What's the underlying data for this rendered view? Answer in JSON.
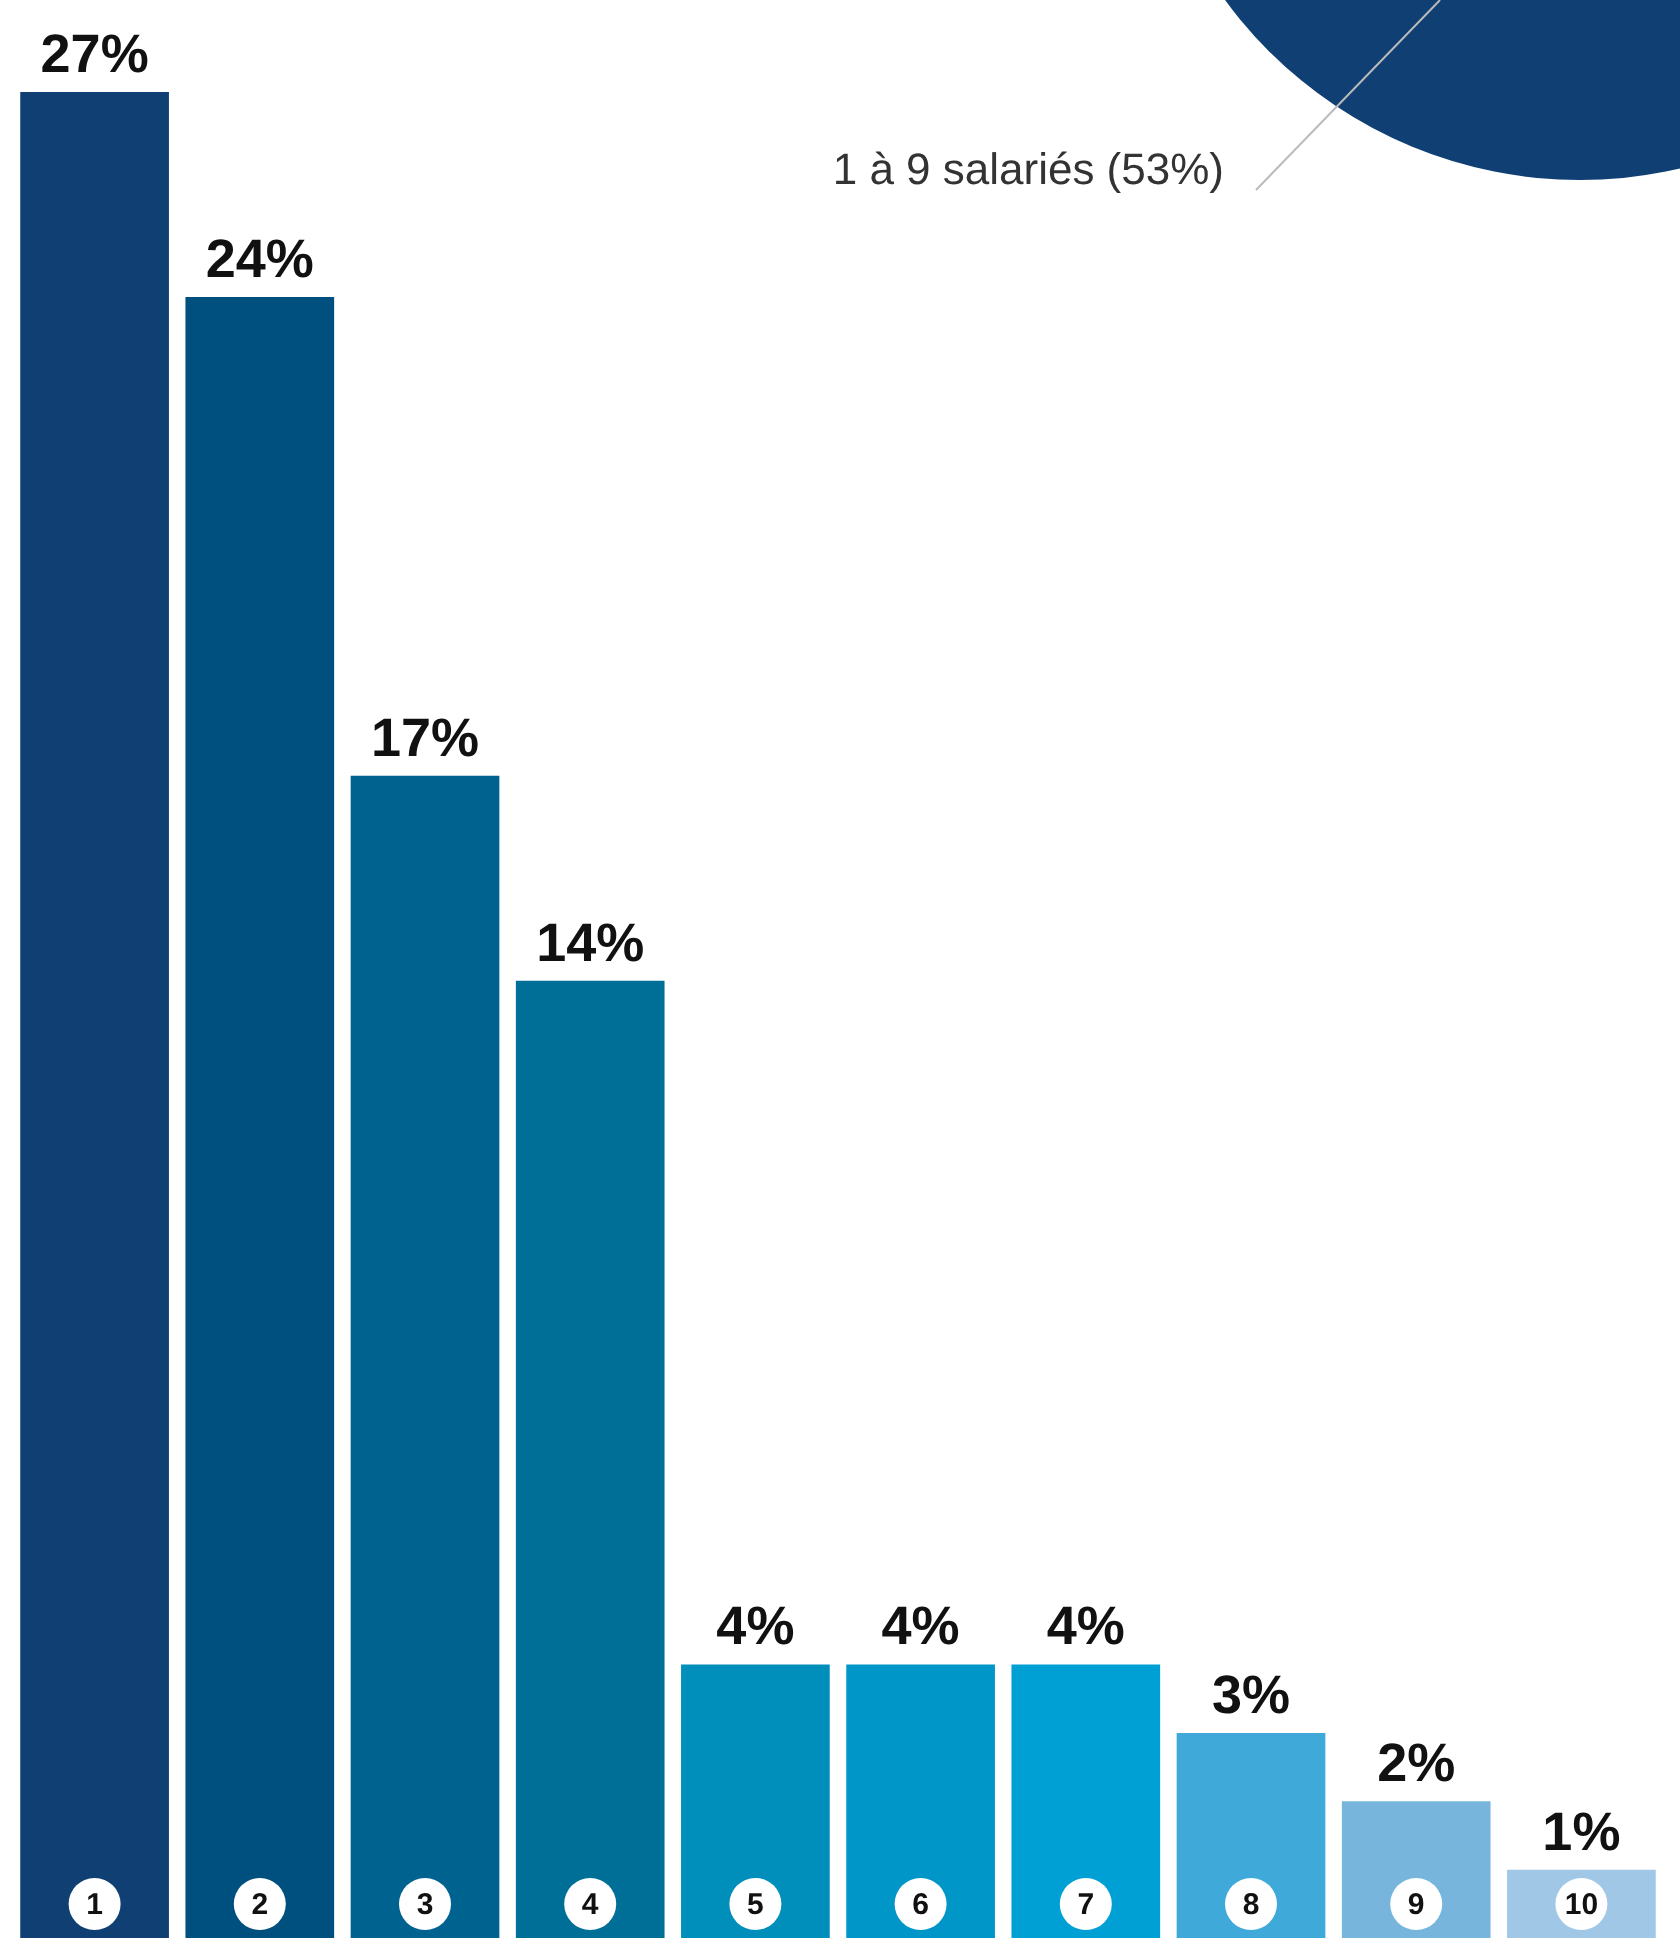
{
  "chart_data": {
    "type": "bar",
    "categories": [
      "1",
      "2",
      "3",
      "4",
      "5",
      "6",
      "7",
      "8",
      "9",
      "10"
    ],
    "values": [
      27,
      24,
      17,
      14,
      4,
      4,
      4,
      3,
      2,
      1
    ],
    "value_labels": [
      "27%",
      "24%",
      "17%",
      "14%",
      "4%",
      "4%",
      "4%",
      "3%",
      "2%",
      "1%"
    ],
    "colors": [
      "#0f3f73",
      "#00507f",
      "#00628f",
      "#006f98",
      "#008fbb",
      "#0096c8",
      "#00a0d4",
      "#3fa9da",
      "#77b5dc",
      "#a0c8e6"
    ],
    "annotations": [
      "1 à 9 salariés (53%)"
    ],
    "legend": false
  }
}
